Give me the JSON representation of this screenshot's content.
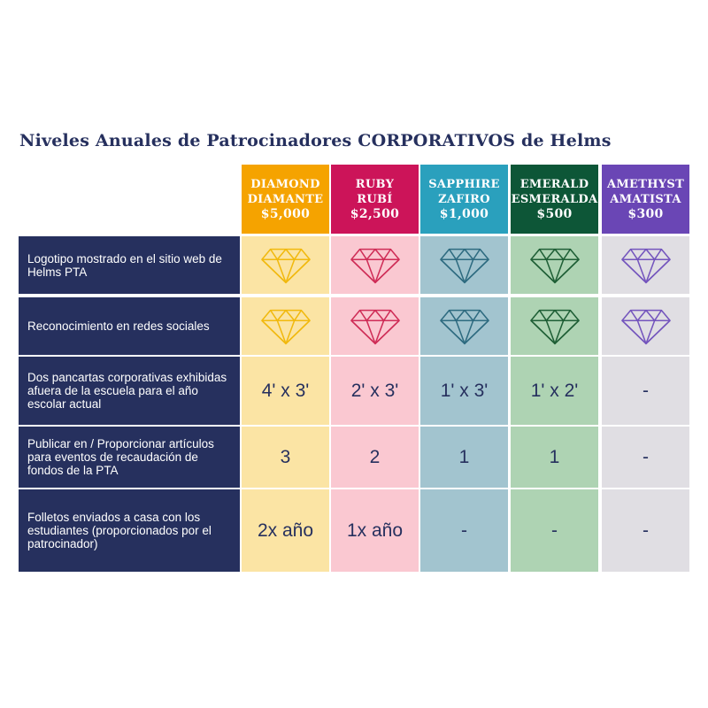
{
  "title": "Niveles Anuales de Patrocinadores CORPORATIVOS de Helms",
  "colors": {
    "navy": "#26305e",
    "header_bg": [
      "#f5a300",
      "#cc1459",
      "#2aa0bd",
      "#0d5637",
      "#6a46b5"
    ],
    "cell_bg": [
      "#fbe4a4",
      "#fac8d1",
      "#a2c4cf",
      "#aed3b3",
      "#e0dee3"
    ],
    "gem_stroke": [
      "#f1b90e",
      "#cf2d57",
      "#2e6b80",
      "#1f5f36",
      "#7455bd"
    ]
  },
  "tiers": [
    {
      "name": "DIAMOND",
      "name_es": "DIAMANTE",
      "price": "$5,000"
    },
    {
      "name": "RUBY",
      "name_es": "RUBÍ",
      "price": "$2,500"
    },
    {
      "name": "SAPPHIRE",
      "name_es": "ZAFIRO",
      "price": "$1,000"
    },
    {
      "name": "EMERALD",
      "name_es": "ESMERALDA",
      "price": "$500"
    },
    {
      "name": "AMETHYST",
      "name_es": "AMATISTA",
      "price": "$300"
    }
  ],
  "rows": [
    {
      "label": "Logotipo mostrado en el sitio web de Helms PTA",
      "cells": [
        "gem-icon",
        "gem-icon",
        "gem-icon",
        "gem-icon",
        "gem-icon"
      ]
    },
    {
      "label": "Reconocimiento en redes sociales",
      "cells": [
        "gem-icon",
        "gem-icon",
        "gem-icon",
        "gem-icon",
        "gem-icon"
      ]
    },
    {
      "label": "Dos pancartas corporativas exhibidas afuera de la escuela para el año escolar actual",
      "cells": [
        "4' x 3'",
        "2' x 3'",
        "1' x 3'",
        "1' x 2'",
        "-"
      ]
    },
    {
      "label": "Publicar en / Proporcionar artículos para eventos de recaudación de fondos de la PTA",
      "cells": [
        "3",
        "2",
        "1",
        "1",
        "-"
      ]
    },
    {
      "label": "Folletos enviados a casa con los estudiantes (proporcionados por el patrocinador)",
      "cells": [
        "2x año",
        "1x año",
        "-",
        "-",
        "-"
      ]
    }
  ]
}
